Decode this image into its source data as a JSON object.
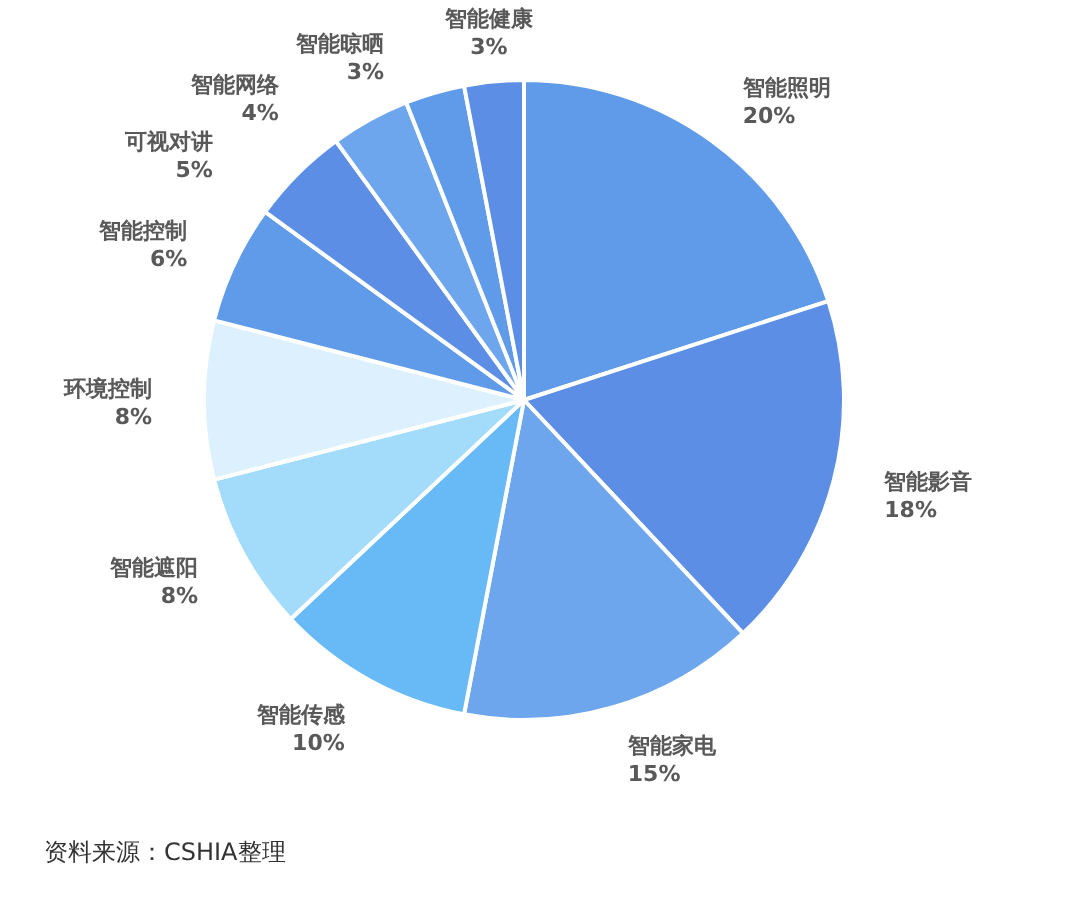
{
  "chart_data": {
    "type": "pie",
    "categories": [
      "智能照明",
      "智能影音",
      "智能家电",
      "智能传感",
      "智能遮阳",
      "环境控制",
      "智能控制",
      "可视对讲",
      "智能网络",
      "智能晾晒",
      "智能健康"
    ],
    "values": [
      20,
      18,
      15,
      10,
      8,
      8,
      6,
      5,
      4,
      3,
      3
    ],
    "colors": [
      "#5f9be9",
      "#5b8ee4",
      "#6ea6ee",
      "#67baf6",
      "#a3dbfb",
      "#dcf1fd",
      "#5f9be9",
      "#5b8ee4",
      "#6ea6ee",
      "#5f9be9",
      "#5b8ee4"
    ],
    "value_labels": [
      "20%",
      "18%",
      "15%",
      "10%",
      "8%",
      "8%",
      "6%",
      "5%",
      "4%",
      "3%",
      "3%"
    ],
    "annotations": [
      "资料来源：CSHIA整理"
    ]
  }
}
